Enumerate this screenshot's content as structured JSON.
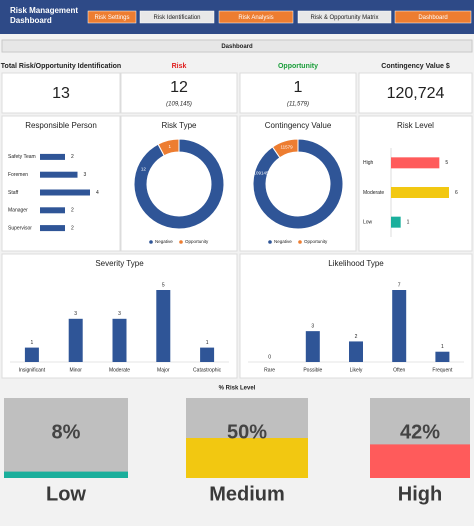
{
  "header": {
    "title": "Risk Management Dashboard",
    "nav": [
      "Risk Settings",
      "Risk Identification",
      "Risk Analysis",
      "Risk & Opportunity Matrix",
      "Dashboard"
    ]
  },
  "page_label": "Dashboard",
  "kpis": [
    {
      "label": "Total Risk/Opportunity Identification",
      "value": 13,
      "color": "#222222"
    },
    {
      "label": "Risk",
      "value": 12,
      "note": "(109,145)",
      "color": "#e02020"
    },
    {
      "label": "Opportunity",
      "value": 1,
      "note": "(11,579)",
      "color": "#1a9e3a"
    },
    {
      "label": "Contingency Value $",
      "value": "120,724",
      "color": "#222222"
    }
  ],
  "chart_data": [
    {
      "type": "hbar",
      "title": "Responsible Person",
      "categories": [
        "Safety Team",
        "Foremen",
        "Staff",
        "Manager",
        "Supervisor"
      ],
      "values": [
        2,
        3,
        4,
        2,
        2
      ],
      "colors": [
        "#2f5597",
        "#2f5597",
        "#2f5597",
        "#2f5597",
        "#2f5597"
      ]
    },
    {
      "type": "donut",
      "title": "Risk Type",
      "categories": [
        "Negative",
        "Opportunity"
      ],
      "values": [
        12,
        1
      ],
      "colors": [
        "#2f5597",
        "#ed7d31"
      ]
    },
    {
      "type": "donut",
      "title": "Contingency Value",
      "categories": [
        "Negative",
        "Opportunity"
      ],
      "values": [
        109145,
        11579
      ],
      "colors": [
        "#2f5597",
        "#ed7d31"
      ]
    },
    {
      "type": "hbar",
      "title": "Risk Level",
      "categories": [
        "High",
        "Moderate",
        "Low"
      ],
      "values": [
        5,
        6,
        1
      ],
      "colors": [
        "#ff5b5b",
        "#f2c811",
        "#1aaf9c"
      ]
    },
    {
      "type": "vbar",
      "title": "Severity Type",
      "categories": [
        "Insignificant",
        "Minor",
        "Moderate",
        "Major",
        "Catastrophic"
      ],
      "values": [
        1,
        3,
        3,
        5,
        1
      ],
      "color": "#2f5597"
    },
    {
      "type": "vbar",
      "title": "Likelihood Type",
      "categories": [
        "Rare",
        "Possible",
        "Likely",
        "Often",
        "Frequent"
      ],
      "values": [
        0,
        3,
        2,
        7,
        1
      ],
      "color": "#2f5597"
    },
    {
      "type": "gauge",
      "title": "% Risk Level",
      "categories": [
        "Low",
        "Medium",
        "High"
      ],
      "values": [
        8,
        50,
        42
      ],
      "value_labels": [
        "8%",
        "50%",
        "42%"
      ],
      "colors": [
        "#1aaf9c",
        "#f2c811",
        "#ff5b5b"
      ],
      "ylim": [
        0,
        100
      ]
    }
  ]
}
